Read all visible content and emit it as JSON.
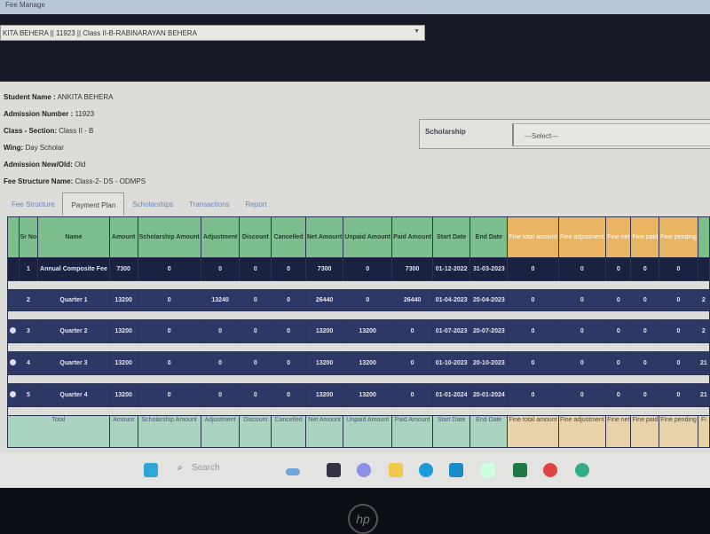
{
  "window": {
    "title": "Fee Manage"
  },
  "student_select": {
    "value": "KITA BEHERA || 11923 || Class II-B-RABINARAYAN BEHERA"
  },
  "info": [
    {
      "label": "Student Name :",
      "value": "ANKITA BEHERA"
    },
    {
      "label": "Admission Number :",
      "value": "11923"
    },
    {
      "label": "Class - Section:",
      "value": "Class II - B"
    },
    {
      "label": "Wing:",
      "value": "Day Scholar"
    },
    {
      "label": "Admission New/Old:",
      "value": "Old"
    },
    {
      "label": "Fee Structure Name:",
      "value": "Class-2- DS - ODMPS"
    }
  ],
  "scholarship": {
    "label": "Scholarship",
    "select": "---Select---"
  },
  "tabs": [
    {
      "label": "Fee Structure"
    },
    {
      "label": "Payment Plan",
      "active": true
    },
    {
      "label": "Scholarships"
    },
    {
      "label": "Transactions"
    },
    {
      "label": "Report"
    }
  ],
  "table": {
    "headers": [
      "",
      "Sr No",
      "Name",
      "Amount",
      "Scholarship Amount",
      "Adjustment",
      "Discount",
      "Cancelled",
      "Net Amount",
      "Unpaid Amount",
      "Paid Amount",
      "Start Date",
      "End Date",
      "Fine total amount",
      "Fine adjustment",
      "Fine net",
      "Fine paid",
      "Fine pending",
      ""
    ],
    "rows": [
      {
        "radio": false,
        "cells": [
          "1",
          "Annual Composite Fee",
          "7300",
          "0",
          "0",
          "0",
          "0",
          "7300",
          "0",
          "7300",
          "01-12-2022",
          "31-03-2023",
          "0",
          "0",
          "0",
          "0",
          "0",
          ""
        ]
      },
      {
        "radio": false,
        "cells": [
          "2",
          "Quarter 1",
          "13200",
          "0",
          "13240",
          "0",
          "0",
          "26440",
          "0",
          "26440",
          "01-04-2023",
          "20-04-2023",
          "0",
          "0",
          "0",
          "0",
          "0",
          "2"
        ]
      },
      {
        "radio": true,
        "cells": [
          "3",
          "Quarter 2",
          "13200",
          "0",
          "0",
          "0",
          "0",
          "13200",
          "13200",
          "0",
          "01-07-2023",
          "20-07-2023",
          "0",
          "0",
          "0",
          "0",
          "0",
          "2"
        ]
      },
      {
        "radio": true,
        "cells": [
          "4",
          "Quarter 3",
          "13200",
          "0",
          "0",
          "0",
          "0",
          "13200",
          "13200",
          "0",
          "01-10-2023",
          "20-10-2023",
          "0",
          "0",
          "0",
          "0",
          "0",
          "21"
        ]
      },
      {
        "radio": true,
        "cells": [
          "5",
          "Quarter 4",
          "13200",
          "0",
          "0",
          "0",
          "0",
          "13200",
          "13200",
          "0",
          "01-01-2024",
          "20-01-2024",
          "0",
          "0",
          "0",
          "0",
          "0",
          "21"
        ]
      }
    ],
    "total": {
      "label": "Total",
      "headers": [
        "Amount",
        "Scholarship Amount",
        "Adjustment",
        "Discount",
        "Cancelled",
        "Net Amount",
        "Unpaid Amount",
        "Paid Amount",
        "Start Date",
        "End Date",
        "Fine total amount",
        "Fine adjustment",
        "Fine net",
        "Fine paid",
        "Fine pending",
        "Fi"
      ]
    }
  },
  "taskbar": {
    "search_placeholder": "Search",
    "icons": [
      "windows-start",
      "search",
      "copilot",
      "app-l",
      "chat",
      "file-explorer",
      "edge",
      "mail",
      "phone-link",
      "excel",
      "chrome-profile-1",
      "chrome-profile-2"
    ]
  },
  "colors": {
    "header_green": "#7cbf8c",
    "header_orange": "#e9b562",
    "row_navy": "#2e3866"
  },
  "laptop": {
    "logo": "hp"
  }
}
